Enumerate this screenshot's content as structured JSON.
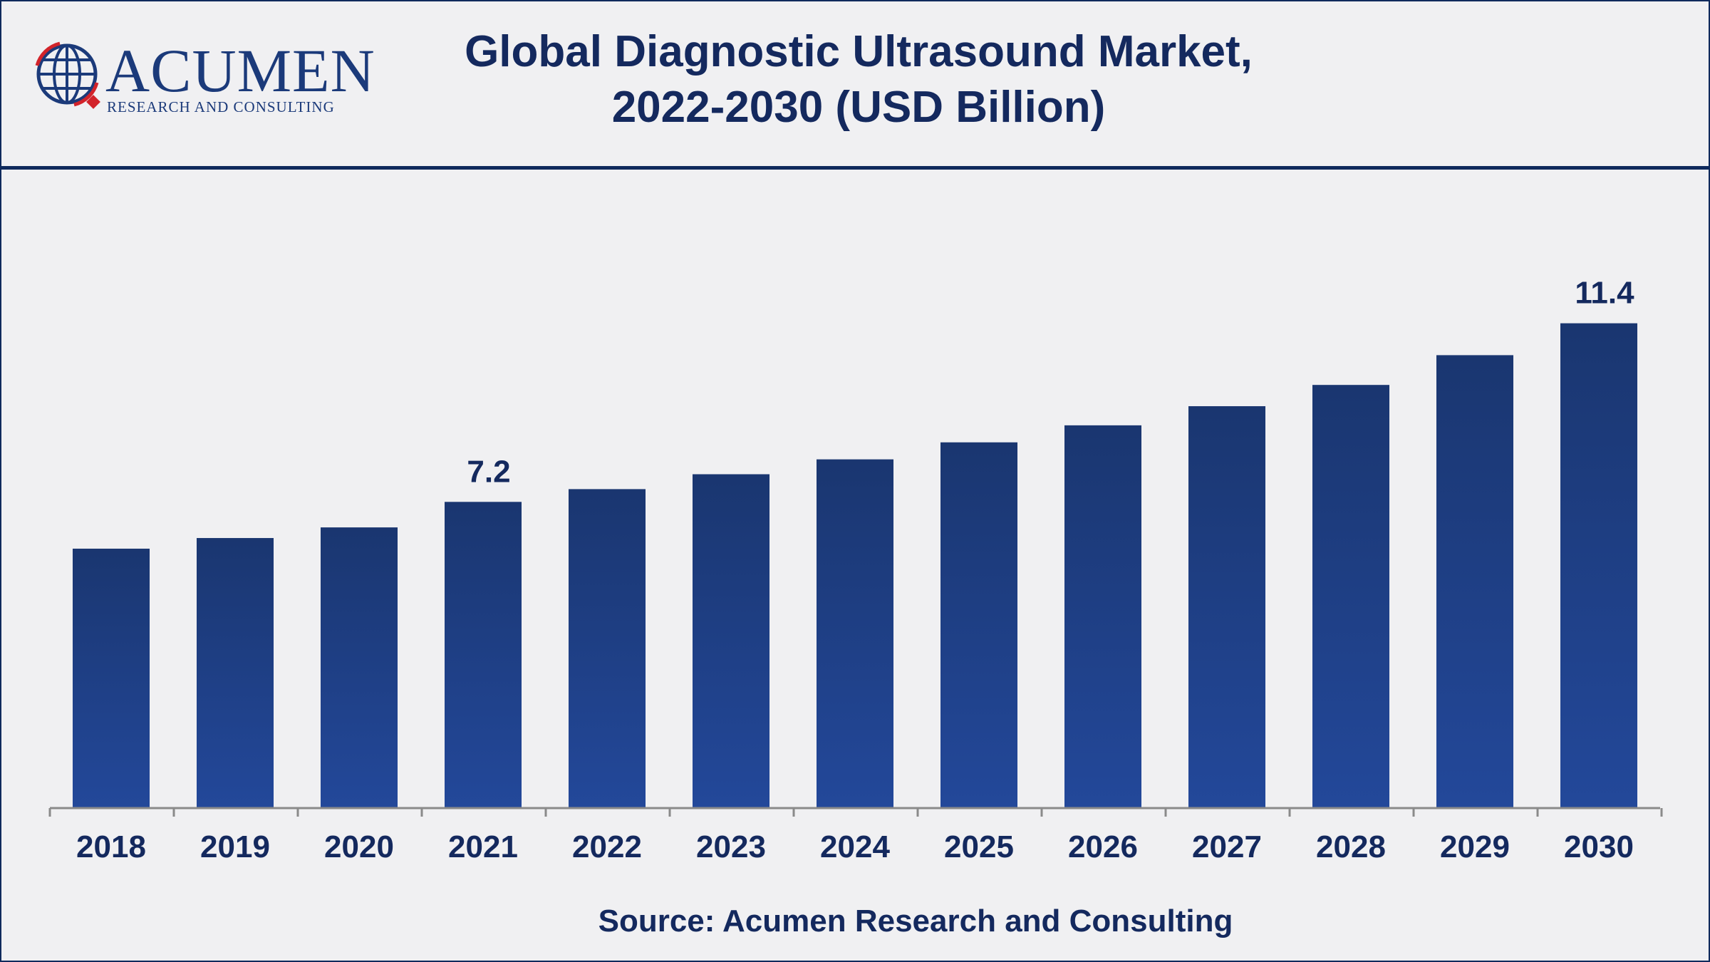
{
  "header": {
    "logo": {
      "name": "ACUMEN",
      "tagline": "RESEARCH AND CONSULTING"
    },
    "title_line1": "Global Diagnostic Ultrasound Market,",
    "title_line2": "2022-2030 (USD Billion)"
  },
  "chart_data": {
    "type": "bar",
    "title": "Global Diagnostic Ultrasound Market, 2022-2030 (USD Billion)",
    "categories": [
      "2018",
      "2019",
      "2020",
      "2021",
      "2022",
      "2023",
      "2024",
      "2025",
      "2026",
      "2027",
      "2028",
      "2029",
      "2030"
    ],
    "values": [
      6.1,
      6.35,
      6.6,
      7.2,
      7.5,
      7.85,
      8.2,
      8.6,
      9.0,
      9.45,
      9.95,
      10.65,
      11.4
    ],
    "data_labels": [
      null,
      null,
      null,
      "7.2",
      null,
      null,
      null,
      null,
      null,
      null,
      null,
      null,
      "11.4"
    ],
    "xlabel": "",
    "ylabel": "",
    "ylim": [
      0,
      12.5
    ],
    "grid": false,
    "legend": "none",
    "bar_color": "#1f4290"
  },
  "footer": {
    "source": "Source: Acumen Research and Consulting"
  }
}
